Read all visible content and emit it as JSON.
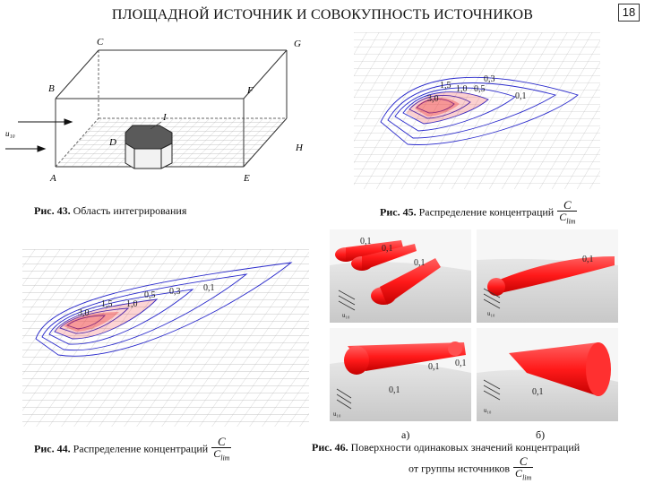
{
  "page": {
    "title": "ПЛОЩАДНОЙ ИСТОЧНИК И СОВОКУПНОСТЬ ИСТОЧНИКОВ",
    "page_number": "18"
  },
  "fig43": {
    "caption_num": "Рис. 43.",
    "caption_text": " Область интегрирования",
    "vertex_labels": {
      "C": "C",
      "G": "G",
      "B": "B",
      "F": "F",
      "D": "D",
      "H": "H",
      "A": "A",
      "E": "E",
      "I": "I"
    },
    "wind_label": "u₁₀"
  },
  "fig44": {
    "caption_num": "Рис. 44.",
    "caption_text": " Распределение концентраций",
    "contour_labels": [
      "3,0",
      "1,5",
      "1,0",
      "0,5",
      "0,3",
      "0,1"
    ]
  },
  "fig45": {
    "caption_num": "Рис. 45.",
    "caption_text": " Распределение концентраций",
    "contour_labels": [
      "3,0",
      "1,5",
      "1,0",
      "0,5",
      "0,3",
      "0,1"
    ]
  },
  "fig46": {
    "caption_num": "Рис. 46.",
    "caption_text": " Поверхности одинаковых значений концентраций",
    "caption_line2": "от группы источников",
    "panel_labels": {
      "a": "а)",
      "b": "б)"
    },
    "iso_label": "0,1",
    "wind_label": "u₁₀"
  },
  "fraction": {
    "numerator": "C",
    "denominator": "C",
    "denominator_sub": "lim"
  },
  "colors": {
    "contour": "#2a2acc",
    "fill": "#ee2a2a",
    "grid": "#9a9a9a",
    "plume": "#ff1a1a"
  }
}
